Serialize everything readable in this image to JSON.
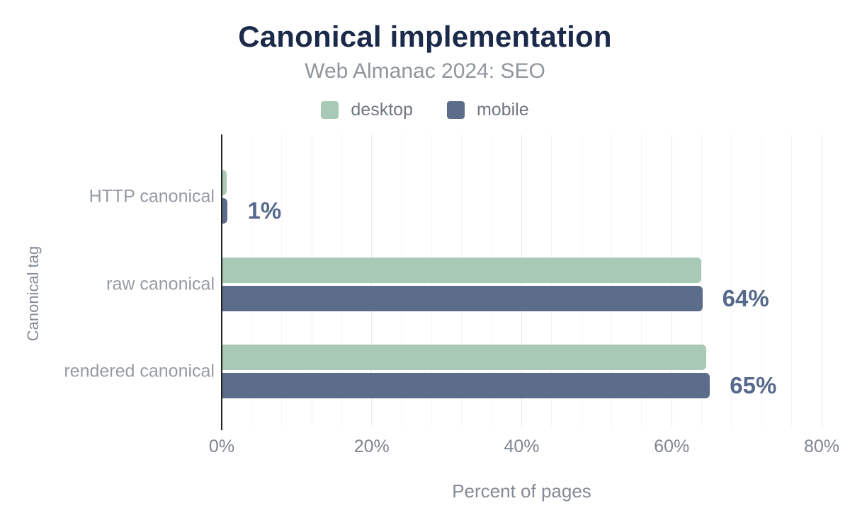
{
  "header": {
    "title": "Canonical implementation",
    "subtitle": "Web Almanac 2024: SEO"
  },
  "legend": [
    {
      "label": "desktop",
      "color": "#a8c9b5"
    },
    {
      "label": "mobile",
      "color": "#5c6c8b"
    }
  ],
  "chart_data": {
    "type": "bar",
    "orientation": "horizontal",
    "title": "Canonical implementation",
    "subtitle": "Web Almanac 2024: SEO",
    "categories": [
      "HTTP canonical",
      "raw canonical",
      "rendered canonical"
    ],
    "series": [
      {
        "name": "desktop",
        "color": "#a8c9b5",
        "values": [
          0.7,
          63.9,
          64.6
        ]
      },
      {
        "name": "mobile",
        "color": "#5c6c8b",
        "values": [
          0.8,
          64.1,
          65.1
        ]
      }
    ],
    "value_labels": [
      "1%",
      "64%",
      "65%"
    ],
    "xlabel": "Percent of pages",
    "ylabel": "Canonical tag",
    "xlim": [
      0,
      80
    ],
    "x_ticks": [
      "0%",
      "20%",
      "40%",
      "60%",
      "80%"
    ],
    "x_tick_values": [
      0,
      20,
      40,
      60,
      80
    ],
    "minor_grid_step": 4,
    "grid": true,
    "legend_position": "top"
  },
  "colors": {
    "title": "#1b2a4a",
    "subtitle": "#8f969c",
    "legend_text": "#6f7681",
    "category_label": "#959ba3",
    "tick_label": "#7e858e",
    "axis_title": "#848b94",
    "value_label": "#56688b",
    "axis_line": "#222222",
    "grid_minor": "#f5f5f5",
    "grid_major": "#e9e9e9",
    "background": "#ffffff"
  }
}
